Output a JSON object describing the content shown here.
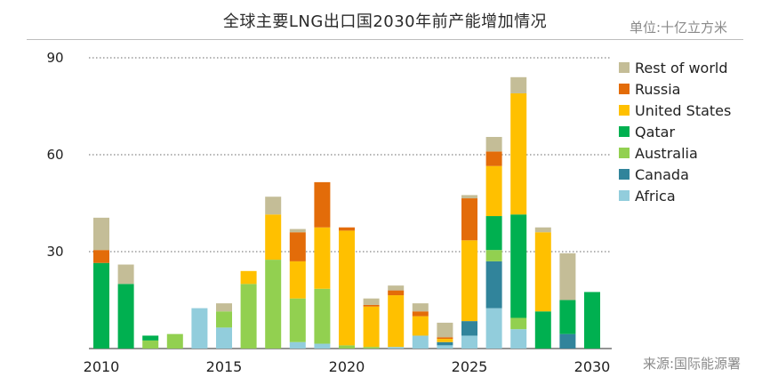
{
  "header": {
    "title": "全球主要LNG出口国2030年前产能增加情况",
    "unit": "单位:十亿立方米"
  },
  "footer": {
    "source": "来源:国际能源署"
  },
  "chart_data": {
    "type": "bar",
    "stacked": true,
    "title": "全球主要LNG出口国2030年前产能增加情况",
    "xlabel": "",
    "ylabel": "单位:十亿立方米",
    "ylim": [
      0,
      90
    ],
    "yticks": [
      30,
      60,
      90
    ],
    "x": [
      2010,
      2011,
      2012,
      2013,
      2014,
      2015,
      2016,
      2017,
      2018,
      2019,
      2020,
      2021,
      2022,
      2023,
      2024,
      2025,
      2026,
      2027,
      2028,
      2029,
      2030
    ],
    "xtick_labels": [
      {
        "year": 2010,
        "label": "2010"
      },
      {
        "year": 2015,
        "label": "2015"
      },
      {
        "year": 2020,
        "label": "2020"
      },
      {
        "year": 2025,
        "label": "2025"
      },
      {
        "year": 2030,
        "label": "2030"
      }
    ],
    "legend_position": "right",
    "series": [
      {
        "name": "Africa",
        "color": "#92cddc",
        "values": [
          0,
          0,
          0,
          0,
          12.5,
          6.5,
          0,
          0,
          2,
          1.5,
          0,
          0,
          0.5,
          4,
          1,
          4,
          12.5,
          6,
          0,
          0,
          0
        ]
      },
      {
        "name": "Canada",
        "color": "#31849b",
        "values": [
          0,
          0,
          0,
          0,
          0,
          0,
          0,
          0,
          0,
          0,
          0,
          0,
          0,
          0,
          1,
          4.5,
          14.5,
          0,
          0,
          4.5,
          0
        ]
      },
      {
        "name": "Australia",
        "color": "#92d050",
        "values": [
          0,
          0,
          2.5,
          4.5,
          0,
          5,
          20,
          27.5,
          13.5,
          17,
          1,
          0.5,
          0,
          0,
          0,
          0,
          3.5,
          3.5,
          0,
          0,
          0
        ]
      },
      {
        "name": "Qatar",
        "color": "#00b050",
        "values": [
          26.5,
          20,
          1.5,
          0,
          0,
          0,
          0,
          0,
          0,
          0,
          0,
          0,
          0,
          0,
          0,
          0,
          10.5,
          32,
          11.5,
          10.5,
          17.5
        ]
      },
      {
        "name": "United States",
        "color": "#ffc000",
        "values": [
          0,
          0,
          0,
          0,
          0,
          0,
          4,
          14,
          11.5,
          19,
          35.5,
          12.5,
          16,
          6,
          1,
          25,
          15.5,
          37.5,
          24.5,
          0,
          0
        ]
      },
      {
        "name": "Russia",
        "color": "#e36c09",
        "values": [
          4,
          0,
          0,
          0,
          0,
          0,
          0,
          0,
          9,
          14,
          1,
          0.5,
          1.5,
          1.5,
          0.5,
          13,
          4.5,
          0,
          0,
          0,
          0
        ]
      },
      {
        "name": "Rest of world",
        "color": "#c4bd97",
        "values": [
          10,
          6,
          0,
          0,
          0,
          2.5,
          0,
          5.5,
          1,
          0,
          0,
          2,
          1.5,
          2.5,
          4.5,
          1,
          4.5,
          5,
          1.5,
          14.5,
          0
        ]
      }
    ],
    "legend_order": [
      "Rest of world",
      "Russia",
      "United States",
      "Qatar",
      "Australia",
      "Canada",
      "Africa"
    ]
  }
}
